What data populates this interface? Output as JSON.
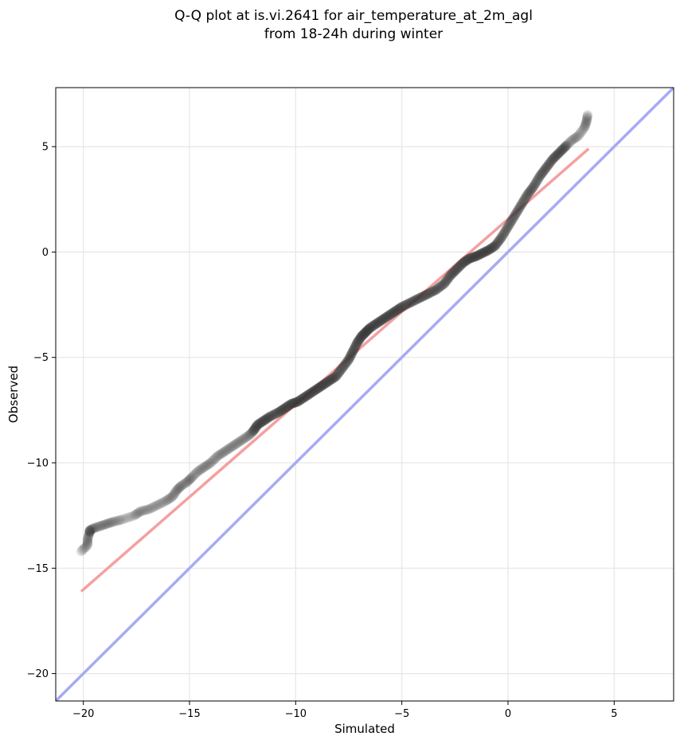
{
  "title": {
    "line1": "Q-Q plot at is.vi.2641 for air_temperature_at_2m_agl",
    "line2": "from 18-24h during winter"
  },
  "chart_data": {
    "type": "scatter",
    "title": "Q-Q plot at is.vi.2641 for air_temperature_at_2m_agl\nfrom 18-24h during winter",
    "xlabel": "Simulated",
    "ylabel": "Observed",
    "xlim": [
      -21.3,
      7.8
    ],
    "ylim": [
      -21.3,
      7.8
    ],
    "x_ticks": [
      -20,
      -15,
      -10,
      -5,
      0,
      5
    ],
    "y_ticks": [
      -20,
      -15,
      -10,
      -5,
      0,
      5
    ],
    "x_tick_labels": [
      "−20",
      "−15",
      "−10",
      "−5",
      "0",
      "5"
    ],
    "y_tick_labels": [
      "−20",
      "−15",
      "−10",
      "−5",
      "0",
      "5"
    ],
    "grid": true,
    "colors": {
      "points": "#333333",
      "fit_line": "#f4a0a0",
      "identity_line": "#a9a9f5",
      "grid": "#e6e6e6"
    },
    "reference_lines": [
      {
        "kind": "identity",
        "x": [
          -21.3,
          7.8
        ],
        "y": [
          -21.3,
          7.8
        ]
      },
      {
        "kind": "fit",
        "x": [
          -20.1,
          3.8
        ],
        "y": [
          -16.1,
          4.9
        ]
      }
    ],
    "series": [
      {
        "x": [
          -20.1,
          -19.8,
          -19.8,
          -19.7,
          -19.7,
          -19.5,
          -19.2,
          -18.9,
          -18.6,
          -18.2,
          -17.6,
          -17.3,
          -16.9,
          -16.5,
          -16.1,
          -15.8,
          -15.6,
          -15.4,
          -15.1,
          -14.9,
          -14.6,
          -14.3,
          -14.0,
          -13.7,
          -13.4,
          -13.1,
          -12.8,
          -12.5,
          -12.2,
          -12.0,
          -11.8,
          -11.5,
          -11.2,
          -10.8,
          -10.5,
          -10.2,
          -9.9,
          -9.6,
          -9.3,
          -9.0,
          -8.7,
          -8.4,
          -8.1,
          -7.8,
          -7.5,
          -7.3,
          -7.1,
          -6.9,
          -6.7,
          -6.5,
          -6.2,
          -5.9,
          -5.6,
          -5.3,
          -5.0,
          -4.6,
          -4.2,
          -3.8,
          -3.4,
          -3.0,
          -2.7,
          -2.4,
          -2.1,
          -1.8,
          -1.5,
          -1.2,
          -0.9,
          -0.6,
          -0.3,
          0.0,
          0.3,
          0.6,
          0.9,
          1.2,
          1.5,
          1.8,
          2.1,
          2.4,
          2.7,
          3.0,
          3.3,
          3.6,
          3.7,
          3.75
        ],
        "y": [
          -14.2,
          -13.9,
          -13.6,
          -13.3,
          -13.2,
          -13.1,
          -13.0,
          -12.9,
          -12.8,
          -12.7,
          -12.5,
          -12.3,
          -12.2,
          -12.0,
          -11.8,
          -11.6,
          -11.3,
          -11.1,
          -10.9,
          -10.7,
          -10.4,
          -10.2,
          -10.0,
          -9.7,
          -9.5,
          -9.3,
          -9.1,
          -8.9,
          -8.7,
          -8.5,
          -8.2,
          -8.0,
          -7.8,
          -7.6,
          -7.4,
          -7.2,
          -7.1,
          -6.9,
          -6.7,
          -6.5,
          -6.3,
          -6.1,
          -5.9,
          -5.5,
          -5.1,
          -4.7,
          -4.3,
          -4.0,
          -3.8,
          -3.6,
          -3.4,
          -3.2,
          -3.0,
          -2.8,
          -2.6,
          -2.4,
          -2.2,
          -2.0,
          -1.8,
          -1.5,
          -1.1,
          -0.8,
          -0.5,
          -0.3,
          -0.2,
          -0.05,
          0.1,
          0.3,
          0.7,
          1.2,
          1.7,
          2.2,
          2.7,
          3.1,
          3.6,
          4.0,
          4.4,
          4.7,
          5.0,
          5.3,
          5.5,
          5.9,
          6.2,
          6.5
        ]
      }
    ]
  }
}
